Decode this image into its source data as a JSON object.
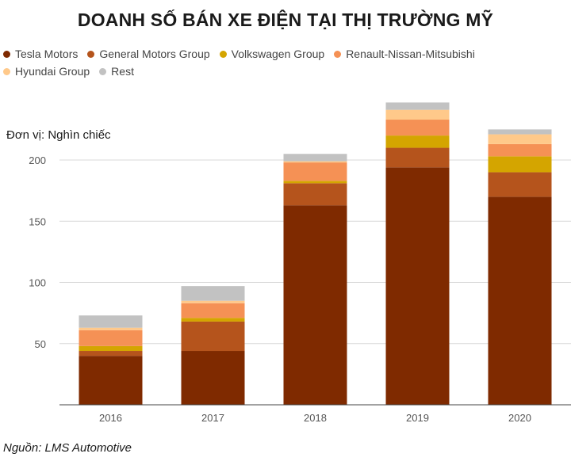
{
  "title": "DOANH SỐ BÁN XE ĐIỆN TẠI THỊ TRƯỜNG MỸ",
  "unit_label": "Đơn vị: Nghìn chiếc",
  "source": "Nguồn: LMS Automotive",
  "chart_data": {
    "type": "bar",
    "stacked": true,
    "title": "DOANH SỐ BÁN XE ĐIỆN TẠI THỊ TRƯỜNG MỸ",
    "xlabel": "",
    "ylabel": "Đơn vị: Nghìn chiếc",
    "categories": [
      "2016",
      "2017",
      "2018",
      "2019",
      "2020"
    ],
    "ylim": [
      0,
      240
    ],
    "yticks": [
      50,
      100,
      150,
      200
    ],
    "grid": true,
    "legend_position": "top",
    "series": [
      {
        "name": "Tesla Motors",
        "color": "#7f2a00",
        "values": [
          40,
          44,
          163,
          194,
          170
        ]
      },
      {
        "name": "General Motors Group",
        "color": "#b5541c",
        "values": [
          4,
          24,
          18,
          16,
          20
        ]
      },
      {
        "name": "Volkswagen Group",
        "color": "#d4a500",
        "values": [
          4,
          3,
          2,
          10,
          13
        ]
      },
      {
        "name": "Renault-Nissan-Mitsubishi",
        "color": "#f59155",
        "values": [
          13,
          12,
          15,
          13,
          10
        ]
      },
      {
        "name": "Hyundai Group",
        "color": "#ffc98a",
        "values": [
          2,
          2,
          1,
          8,
          8
        ]
      },
      {
        "name": "Rest",
        "color": "#c2c2c2",
        "values": [
          10,
          12,
          6,
          6,
          4
        ]
      }
    ]
  }
}
